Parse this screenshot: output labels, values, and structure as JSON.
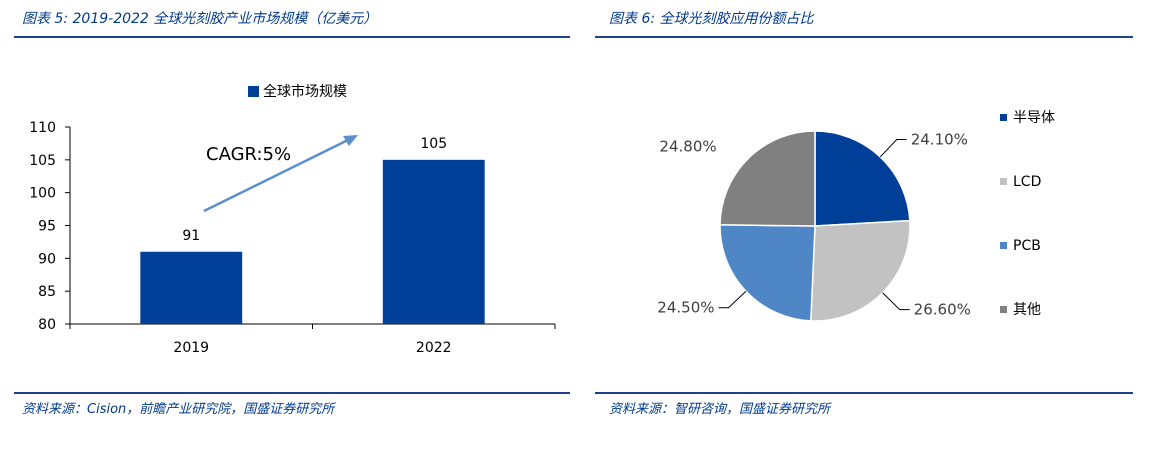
{
  "figures": {
    "left": {
      "title": "图表 5:  2019-2022 全球光刻胶产业市场规模（亿美元）",
      "source": "资料来源：Cision，前瞻产业研究院，国盛证券研究所",
      "annotation": "CAGR:5%"
    },
    "right": {
      "title": "图表 6:  全球光刻胶应用份额占比",
      "source": "资料来源：智研咨询，国盛证券研究所"
    }
  },
  "chart_data": [
    {
      "type": "bar",
      "title": "",
      "categories": [
        "2019",
        "2022"
      ],
      "series": [
        {
          "name": "全球市场规模",
          "values": [
            91,
            105
          ],
          "color": "#003f98"
        }
      ],
      "data_labels": [
        "91",
        "105"
      ],
      "ylim": [
        80,
        110
      ],
      "yticks": [
        "80",
        "85",
        "90",
        "95",
        "100",
        "105",
        "110"
      ],
      "xlabel": "",
      "ylabel": "",
      "legend_position": "top",
      "grid": false
    },
    {
      "type": "pie",
      "title": "",
      "labels": [
        "半导体",
        "LCD",
        "PCB",
        "其他"
      ],
      "values": [
        24.1,
        26.6,
        24.5,
        24.8
      ],
      "value_labels": [
        "24.10%",
        "26.60%",
        "24.50%",
        "24.80%"
      ],
      "colors": [
        "#003f98",
        "#c2c2c2",
        "#4f86c6",
        "#808080"
      ],
      "legend_position": "right",
      "grid": false
    }
  ]
}
